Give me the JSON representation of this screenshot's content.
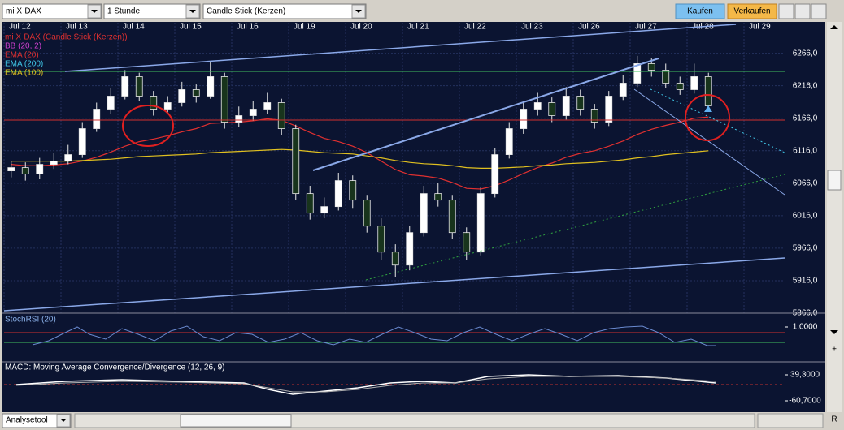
{
  "toolbar": {
    "instrument": "mi X-DAX",
    "interval": "1 Stunde",
    "chart_style": "Candle Stick (Kerzen)",
    "buy": "Kaufen",
    "sell": "Verkaufen"
  },
  "chart_data": {
    "type": "candlestick",
    "title": "mi X-DAX (Candle Stick (Kerzen))",
    "title_color": "#e03030",
    "x_labels": [
      "Jul 12",
      "Jul 13",
      "Jul 14",
      "Jul 15",
      "Jul 16",
      "Jul 19",
      "Jul 20",
      "Jul 21",
      "Jul 22",
      "Jul 23",
      "Jul 26",
      "Jul 27",
      "Jul 28",
      "Jul 29"
    ],
    "open": [
      6085,
      6090,
      6080,
      6095,
      6100,
      6110,
      6150,
      6180,
      6200,
      6230,
      6200,
      6180,
      6190,
      6210,
      6200,
      6230,
      6160,
      6170,
      6180,
      6190,
      6150,
      6050,
      6020,
      6030,
      6070,
      6040,
      6000,
      5960,
      5940,
      5990,
      6050,
      6040,
      5990,
      5960,
      6050,
      6110,
      6150,
      6180,
      6190,
      6170,
      6200,
      6180,
      6160,
      6200,
      6220,
      6250,
      6240,
      6220,
      6210,
      6230
    ],
    "high": [
      6100,
      6098,
      6105,
      6112,
      6125,
      6160,
      6190,
      6212,
      6240,
      6236,
      6208,
      6200,
      6222,
      6218,
      6252,
      6236,
      6184,
      6192,
      6205,
      6196,
      6156,
      6062,
      6044,
      6082,
      6078,
      6048,
      6012,
      5972,
      6000,
      6062,
      6066,
      6048,
      5998,
      6060,
      6120,
      6160,
      6192,
      6205,
      6198,
      6214,
      6210,
      6188,
      6208,
      6232,
      6262,
      6258,
      6250,
      6230,
      6250,
      6236
    ],
    "low": [
      6075,
      6070,
      6072,
      6088,
      6095,
      6105,
      6145,
      6172,
      6195,
      6192,
      6170,
      6172,
      6184,
      6190,
      6196,
      6150,
      6152,
      6162,
      6172,
      6140,
      6040,
      6010,
      6012,
      6024,
      6028,
      5990,
      5948,
      5922,
      5932,
      5984,
      6030,
      5980,
      5948,
      5955,
      6044,
      6104,
      6142,
      6170,
      6160,
      6164,
      6170,
      6150,
      6154,
      6194,
      6214,
      6230,
      6212,
      6202,
      6204,
      6176
    ],
    "close": [
      6090,
      6080,
      6095,
      6100,
      6110,
      6150,
      6180,
      6200,
      6230,
      6200,
      6180,
      6190,
      6210,
      6200,
      6230,
      6160,
      6170,
      6180,
      6190,
      6150,
      6050,
      6020,
      6030,
      6070,
      6040,
      6000,
      5960,
      5940,
      5990,
      6050,
      6040,
      5990,
      5960,
      6050,
      6110,
      6150,
      6180,
      6190,
      6170,
      6200,
      6180,
      6160,
      6200,
      6220,
      6250,
      6240,
      6220,
      6210,
      6230,
      6185
    ],
    "up_color": "#ffffff",
    "down_color": "#18341c",
    "series": [
      {
        "name": "BB (20, 2)",
        "color": "#d040d0"
      },
      {
        "name": "EMA (20)",
        "color": "#e03030",
        "values": [
          6095,
          6093,
          6093,
          6094,
          6096,
          6100,
          6106,
          6114,
          6123,
          6130,
          6134,
          6139,
          6145,
          6150,
          6158,
          6159,
          6160,
          6162,
          6165,
          6163,
          6154,
          6144,
          6135,
          6130,
          6123,
          6113,
          6100,
          6087,
          6079,
          6077,
          6074,
          6067,
          6058,
          6057,
          6062,
          6071,
          6081,
          6090,
          6097,
          6106,
          6112,
          6116,
          6123,
          6131,
          6141,
          6149,
          6155,
          6160,
          6166,
          6168
        ]
      },
      {
        "name": "EMA (200)",
        "color": "#40c8e8"
      },
      {
        "name": "EMA (100)",
        "color": "#e0c020",
        "values": [
          6100,
          6100,
          6100,
          6100,
          6100,
          6101,
          6102,
          6103,
          6105,
          6107,
          6108,
          6109,
          6110,
          6111,
          6113,
          6114,
          6115,
          6116,
          6117,
          6118,
          6117,
          6115,
          6113,
          6112,
          6111,
          6108,
          6105,
          6101,
          6098,
          6096,
          6095,
          6093,
          6090,
          6089,
          6089,
          6090,
          6091,
          6093,
          6094,
          6096,
          6097,
          6098,
          6100,
          6102,
          6105,
          6107,
          6110,
          6112,
          6114,
          6116
        ]
      }
    ],
    "ylim": [
      5866,
      6298
    ],
    "yticks": [
      {
        "value": 6266,
        "label": "6266,0"
      },
      {
        "value": 6216,
        "label": "6216,0"
      },
      {
        "value": 6166,
        "label": "6166,0"
      },
      {
        "value": 6116,
        "label": "6116,0"
      },
      {
        "value": 6066,
        "label": "6066,0"
      },
      {
        "value": 6016,
        "label": "6016,0"
      },
      {
        "value": 5966,
        "label": "5966,0"
      },
      {
        "value": 5916,
        "label": "5916,0"
      },
      {
        "value": 5866,
        "label": "5866,0"
      }
    ],
    "grid": true
  },
  "indicators": {
    "stoch": {
      "title": "StochRSI (20)",
      "ticks": [
        {
          "value": 1,
          "label": "1,0000"
        }
      ]
    },
    "macd": {
      "title": "MACD: Moving Average Convergence/Divergence (12, 26, 9)",
      "ticks": [
        {
          "value": 39.3,
          "label": "39,3000"
        },
        {
          "value": -60.7,
          "label": "-60,7000"
        }
      ]
    }
  },
  "footer": {
    "tool": "Analysetool",
    "reset": "R"
  }
}
